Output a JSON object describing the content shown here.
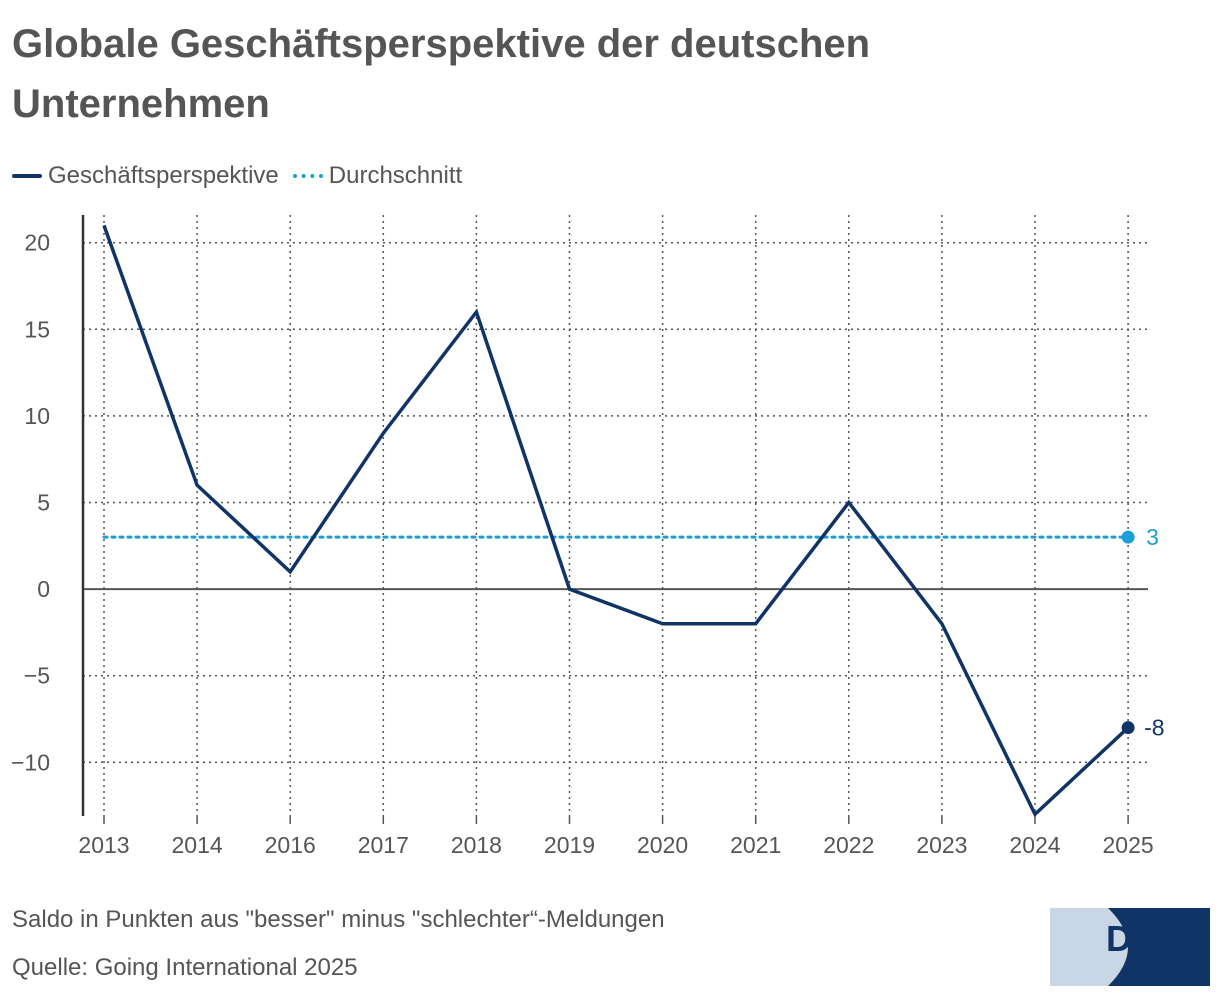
{
  "title": "Globale Geschäftsperspektive der deutschen Unternehmen",
  "legend": {
    "series1": "Geschäftsperspektive",
    "series2": "Durchschnitt"
  },
  "footer": {
    "note": "Saldo in Punkten aus \"besser\" minus \"schlechter“-Meldungen",
    "source": "Quelle: Going International 2025"
  },
  "logo": {
    "text": "DIHK"
  },
  "colors": {
    "line": "#0f3465",
    "average": "#1a9fd7",
    "grid": "#555555",
    "text": "#555555"
  },
  "chart_data": {
    "type": "line",
    "categories": [
      "2013",
      "2014",
      "2016",
      "2017",
      "2018",
      "2019",
      "2020",
      "2021",
      "2022",
      "2023",
      "2024",
      "2025"
    ],
    "series": [
      {
        "name": "Geschäftsperspektive",
        "values": [
          21,
          6,
          1,
          9,
          16,
          0,
          -2,
          -2,
          5,
          -2,
          -13,
          -8
        ]
      },
      {
        "name": "Durchschnitt",
        "values": [
          3,
          3,
          3,
          3,
          3,
          3,
          3,
          3,
          3,
          3,
          3,
          3
        ]
      }
    ],
    "end_labels": {
      "Geschäftsperspektive": "-8",
      "Durchschnitt": "3"
    },
    "yticks": [
      20,
      15,
      10,
      5,
      0,
      -5,
      -10
    ],
    "ytick_labels": [
      "20",
      "15",
      "10",
      "5",
      "0",
      "−5",
      "−10"
    ],
    "ylim": [
      -13.1,
      21.6
    ],
    "xlabel": "",
    "ylabel": "",
    "grid": true
  }
}
